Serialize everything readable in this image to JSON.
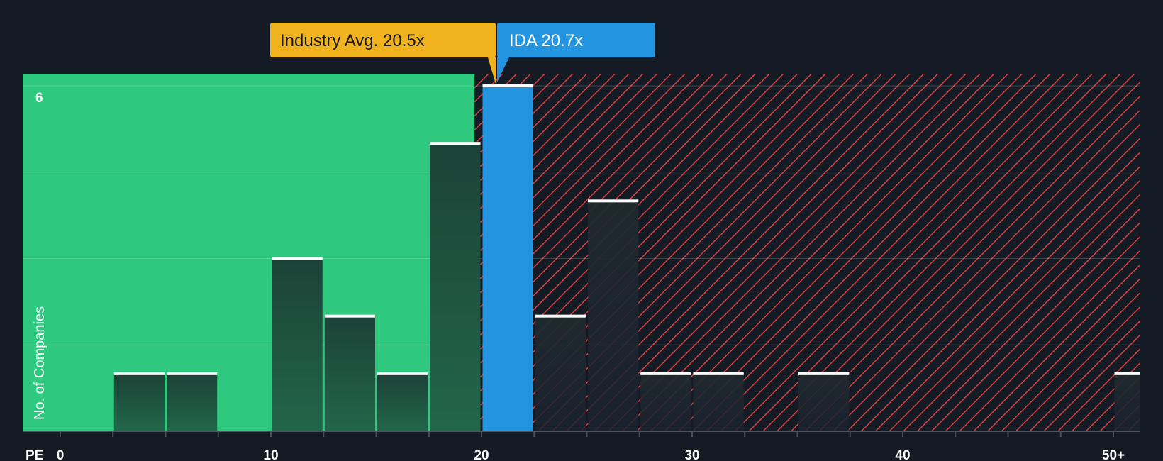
{
  "chart_data": {
    "type": "bar",
    "title": "",
    "xlabel": "PE",
    "ylabel": "No. of Companies",
    "xlim": [
      0,
      50
    ],
    "ylim": [
      0,
      6
    ],
    "y_max_label": "6",
    "x_ticks": [
      {
        "value": 0,
        "label": "0"
      },
      {
        "value": 10,
        "label": "10"
      },
      {
        "value": 20,
        "label": "20"
      },
      {
        "value": 30,
        "label": "30"
      },
      {
        "value": 40,
        "label": "40"
      },
      {
        "value": 50,
        "label": "50+"
      }
    ],
    "bin_width": 2.5,
    "bins": [
      {
        "start": 2.5,
        "count": 1
      },
      {
        "start": 5.0,
        "count": 1
      },
      {
        "start": 10.0,
        "count": 3
      },
      {
        "start": 12.5,
        "count": 2
      },
      {
        "start": 15.0,
        "count": 1
      },
      {
        "start": 17.5,
        "count": 5
      },
      {
        "start": 20.0,
        "count": 6,
        "highlight": true
      },
      {
        "start": 22.5,
        "count": 2
      },
      {
        "start": 25.0,
        "count": 4
      },
      {
        "start": 27.5,
        "count": 1
      },
      {
        "start": 30.0,
        "count": 1
      },
      {
        "start": 35.0,
        "count": 1
      },
      {
        "start": 50.0,
        "count": 1
      }
    ],
    "industry_avg": {
      "label": "Industry Avg. 20.5x",
      "value": 20.5
    },
    "company": {
      "label": "IDA 20.7x",
      "value": 20.7
    },
    "fair_region_end": 20.5
  },
  "colors": {
    "background": "#151b24",
    "fair_region": "#2ec97e",
    "overvalued_hatch": "#d9413f",
    "bar_fair": "#1f4a3c",
    "bar_over": "#1d2430",
    "bar_highlight": "#2394e0",
    "bar_cap": "#ffffff",
    "industry_callout": "#f0b31d",
    "company_callout": "#2394e0"
  }
}
